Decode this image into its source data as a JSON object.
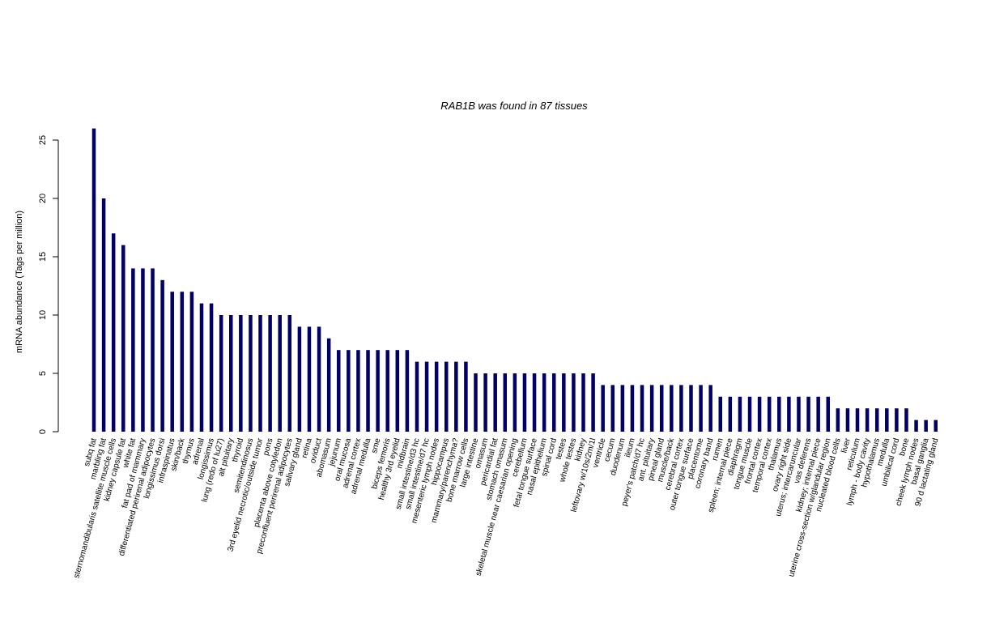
{
  "chart_data": {
    "type": "bar",
    "title": "RAB1B  was found in  87  tissues",
    "xlabel": "",
    "ylabel": "mRNA abundance (Tags per million)",
    "ylim": [
      0,
      26
    ],
    "yticks": [
      0,
      5,
      10,
      15,
      20,
      25
    ],
    "grid": false,
    "bar_color": "#000066",
    "categories": [
      "subq fat",
      "marbling fat",
      "sternomandibularis satellite muscle cells",
      "kidney capsule fat",
      "white fat",
      "fat pad of mammary",
      "differentiated perirenal adipocytes",
      "longissimus dorsi",
      "infraspinatus",
      "skin/back",
      "thymus",
      "adrenal",
      "longissimus",
      "lung (redo of lu27)",
      "alt pituitary",
      "thyroid",
      "semitendinosus",
      "3rd eyelid necrotic/outside tumor",
      "pons",
      "placenta above cotyledon",
      "preconfluent perirenal adipocytes",
      "salivary gland",
      "retina",
      "oviduct",
      "abomasum",
      "jejunum",
      "oral mucosa",
      "adrenal cortex",
      "adrenal medulla",
      "sme",
      "biceps femoris",
      "healthy 3rd eyelid",
      "midbrain",
      "small intestine/d3 hc",
      "small intestine/d7 hc",
      "mesenteric lymph nodes",
      "hippocampus",
      "mammary/parenchyma?",
      "bone marrow cells",
      "large intestine",
      "omasum",
      "pericardial fat",
      "stomach omasum",
      "skeletal muscle near caesarian opening",
      "cerebellum",
      "fetal tongue surface",
      "nasal epithelium",
      "spinal cord",
      "testes",
      "whole testes",
      "kidney",
      "leftovary w/10s/2m/1l",
      "ventricle",
      "cecum",
      "duodenum",
      "ileum",
      "peyer's patch/d7 hc",
      "ant. pituitary",
      "pineal gland",
      "muscle/back",
      "cerebral cortex",
      "outer tongue surface",
      "placentome",
      "coronary band",
      "rumen",
      "spleen; internal piece",
      "diaphragm",
      "tongue muscle",
      "frontal cortex",
      "temporal cortex",
      "thalamus",
      "ovary right side",
      "uterus; intercaruncular",
      "vas deferens",
      "kidney; internal piece",
      "uterine cross-section w/glandular region",
      "nucleated blood cells",
      "liver",
      "reticulum",
      "lymph - body cavity",
      "hypothalamus",
      "medulla",
      "umbilical cord",
      "bone",
      "cheek lymph nodes",
      "basal ganglia",
      "90 d lactating gland"
    ],
    "values": [
      26,
      20,
      17,
      16,
      14,
      14,
      14,
      13,
      12,
      12,
      12,
      11,
      11,
      10,
      10,
      10,
      10,
      10,
      10,
      10,
      10,
      9,
      9,
      9,
      8,
      7,
      7,
      7,
      7,
      7,
      7,
      7,
      7,
      6,
      6,
      6,
      6,
      6,
      6,
      5,
      5,
      5,
      5,
      5,
      5,
      5,
      5,
      5,
      5,
      5,
      5,
      5,
      4,
      4,
      4,
      4,
      4,
      4,
      4,
      4,
      4,
      4,
      4,
      4,
      3,
      3,
      3,
      3,
      3,
      3,
      3,
      3,
      3,
      3,
      3,
      3,
      2,
      2,
      2,
      2,
      2,
      2,
      2,
      2,
      1,
      1,
      1
    ]
  }
}
